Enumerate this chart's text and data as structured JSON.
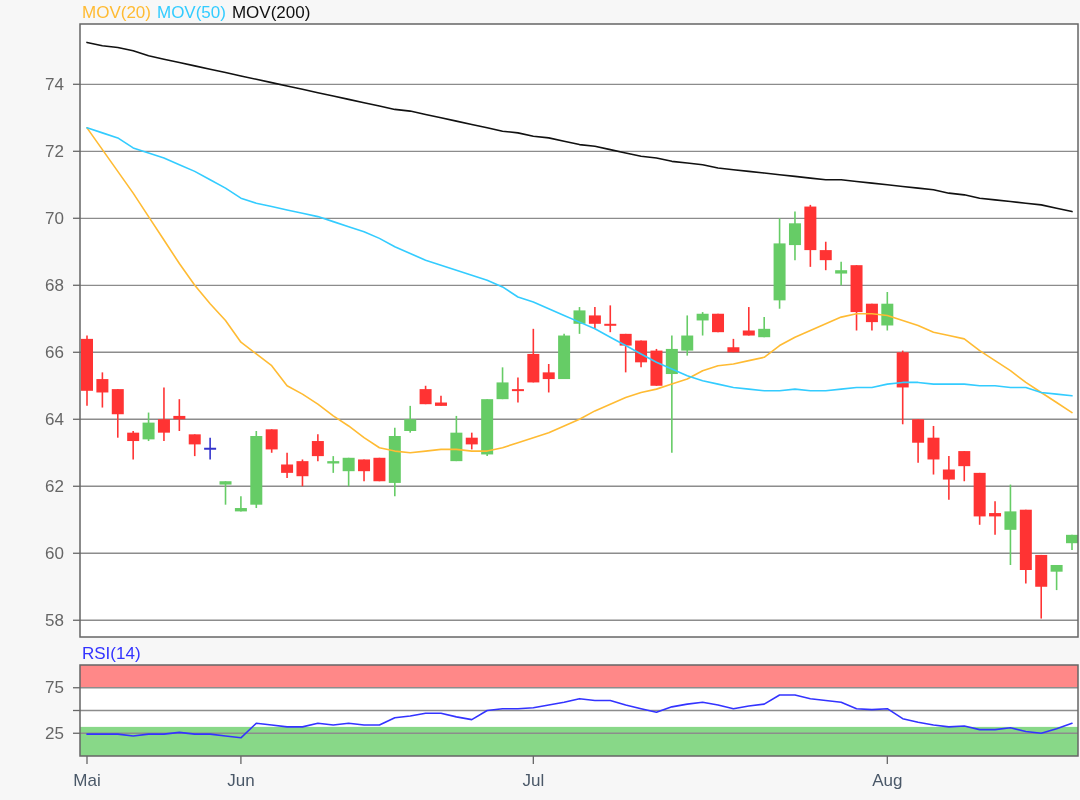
{
  "chart_data": [
    {
      "type": "candlestick",
      "categories": [
        null,
        null,
        null,
        null,
        null,
        null,
        null,
        null,
        null,
        null,
        null,
        null,
        null,
        null,
        null,
        null,
        null,
        null,
        null,
        null,
        null,
        null,
        null,
        null,
        null,
        null,
        null,
        null,
        null,
        null,
        null,
        null,
        null,
        null,
        null,
        null,
        null,
        null,
        null,
        null,
        null,
        null,
        null,
        null,
        null,
        null,
        null,
        null,
        null,
        null,
        null,
        null,
        null,
        null,
        null,
        null,
        null,
        null,
        null,
        null,
        null,
        null,
        null,
        null,
        null
      ],
      "ohlc": [
        [
          66.4,
          66.5,
          64.4,
          64.85
        ],
        [
          65.2,
          65.4,
          64.35,
          64.8
        ],
        [
          64.9,
          64.9,
          63.45,
          64.15
        ],
        [
          63.6,
          63.65,
          62.8,
          63.35
        ],
        [
          63.4,
          64.2,
          63.35,
          63.9
        ],
        [
          64.0,
          64.95,
          63.35,
          63.6
        ],
        [
          64.1,
          64.6,
          63.65,
          64.0
        ],
        [
          63.55,
          63.55,
          62.9,
          63.25
        ],
        [
          63.15,
          63.45,
          62.8,
          63.15
        ],
        [
          62.05,
          62.15,
          61.45,
          62.15
        ],
        [
          61.25,
          61.7,
          61.25,
          61.35
        ],
        [
          61.45,
          63.65,
          61.35,
          63.5
        ],
        [
          63.7,
          63.7,
          63.0,
          63.1
        ],
        [
          62.65,
          63.0,
          62.25,
          62.4
        ],
        [
          62.75,
          62.8,
          62.0,
          62.3
        ],
        [
          63.35,
          63.55,
          62.75,
          62.9
        ],
        [
          62.68,
          62.9,
          62.4,
          62.75
        ],
        [
          62.45,
          62.85,
          62.0,
          62.85
        ],
        [
          62.8,
          62.8,
          62.15,
          62.45
        ],
        [
          62.85,
          62.85,
          62.15,
          62.15
        ],
        [
          62.1,
          63.75,
          61.7,
          63.5
        ],
        [
          63.65,
          64.4,
          63.6,
          64.0
        ],
        [
          64.9,
          65.0,
          64.45,
          64.45
        ],
        [
          64.5,
          64.7,
          64.4,
          64.4
        ],
        [
          62.75,
          64.1,
          62.75,
          63.6
        ],
        [
          63.45,
          63.6,
          63.1,
          63.25
        ],
        [
          62.95,
          64.6,
          62.9,
          64.6
        ],
        [
          64.6,
          65.55,
          64.6,
          65.1
        ],
        [
          64.9,
          65.25,
          64.5,
          64.85
        ],
        [
          65.95,
          66.7,
          65.1,
          65.1
        ],
        [
          65.4,
          65.65,
          64.8,
          65.2
        ],
        [
          65.2,
          66.55,
          65.2,
          66.5
        ],
        [
          66.85,
          67.35,
          66.55,
          67.25
        ],
        [
          67.1,
          67.35,
          66.7,
          66.85
        ],
        [
          66.85,
          67.4,
          66.6,
          66.8
        ],
        [
          66.55,
          66.55,
          65.4,
          66.2
        ],
        [
          66.35,
          66.35,
          65.55,
          65.7
        ],
        [
          66.05,
          66.1,
          65.0,
          65.0
        ],
        [
          65.35,
          66.5,
          63.0,
          66.1
        ],
        [
          66.05,
          67.1,
          65.9,
          66.5
        ],
        [
          66.95,
          67.2,
          66.5,
          67.15
        ],
        [
          67.15,
          67.15,
          66.6,
          66.6
        ],
        [
          66.15,
          66.4,
          66.0,
          66.0
        ],
        [
          66.65,
          67.35,
          66.5,
          66.5
        ],
        [
          66.45,
          67.05,
          66.45,
          66.7
        ],
        [
          67.55,
          70.0,
          67.3,
          69.25
        ],
        [
          69.2,
          70.2,
          68.75,
          69.85
        ],
        [
          70.35,
          70.4,
          68.55,
          69.05
        ],
        [
          69.05,
          69.3,
          68.45,
          68.75
        ],
        [
          68.35,
          68.7,
          68.0,
          68.45
        ],
        [
          68.6,
          68.6,
          66.65,
          67.2
        ],
        [
          67.45,
          67.45,
          66.65,
          66.9
        ],
        [
          66.8,
          67.8,
          66.65,
          67.45
        ],
        [
          66.0,
          66.05,
          63.85,
          64.95
        ],
        [
          64.0,
          64.0,
          62.7,
          63.3
        ],
        [
          63.45,
          63.8,
          62.35,
          62.8
        ],
        [
          62.5,
          62.9,
          61.6,
          62.2
        ],
        [
          63.05,
          63.05,
          62.15,
          62.6
        ],
        [
          62.4,
          62.4,
          60.85,
          61.1
        ],
        [
          61.2,
          61.55,
          60.55,
          61.1
        ],
        [
          60.7,
          62.05,
          59.65,
          61.25
        ],
        [
          61.3,
          61.3,
          59.1,
          59.5
        ],
        [
          59.95,
          59.95,
          58.05,
          59.0
        ],
        [
          59.45,
          59.65,
          58.9,
          59.65
        ],
        [
          60.3,
          60.55,
          60.1,
          60.55
        ]
      ],
      "colors": [
        "#ff3333",
        "#ff3333",
        "#ff3333",
        "#ff3333",
        "#66cc66",
        "#ff3333",
        "#ff3333",
        "#ff3333",
        "#3333cc",
        "#66cc66",
        "#66cc66",
        "#66cc66",
        "#ff3333",
        "#ff3333",
        "#ff3333",
        "#ff3333",
        "#66cc66",
        "#66cc66",
        "#ff3333",
        "#ff3333",
        "#66cc66",
        "#66cc66",
        "#ff3333",
        "#ff3333",
        "#66cc66",
        "#ff3333",
        "#66cc66",
        "#66cc66",
        "#ff3333",
        "#ff3333",
        "#ff3333",
        "#66cc66",
        "#66cc66",
        "#ff3333",
        "#ff3333",
        "#ff3333",
        "#ff3333",
        "#ff3333",
        "#66cc66",
        "#66cc66",
        "#66cc66",
        "#ff3333",
        "#ff3333",
        "#ff3333",
        "#66cc66",
        "#66cc66",
        "#66cc66",
        "#ff3333",
        "#ff3333",
        "#66cc66",
        "#ff3333",
        "#ff3333",
        "#66cc66",
        "#ff3333",
        "#ff3333",
        "#ff3333",
        "#ff3333",
        "#ff3333",
        "#ff3333",
        "#ff3333",
        "#66cc66",
        "#ff3333",
        "#ff3333",
        "#66cc66",
        "#66cc66"
      ],
      "series": [
        {
          "type": "line",
          "name": "MOV(20)",
          "color": "#ffbb33",
          "values": [
            72.7,
            72.05,
            71.4,
            70.75,
            70.05,
            69.35,
            68.65,
            68.0,
            67.45,
            66.95,
            66.3,
            65.95,
            65.6,
            65.0,
            64.75,
            64.45,
            64.1,
            63.8,
            63.45,
            63.15,
            63.05,
            63.0,
            63.05,
            63.1,
            63.1,
            63.05,
            63.05,
            63.15,
            63.3,
            63.45,
            63.6,
            63.8,
            64.0,
            64.25,
            64.45,
            64.65,
            64.8,
            64.9,
            65.05,
            65.2,
            65.45,
            65.6,
            65.65,
            65.75,
            65.85,
            66.2,
            66.45,
            66.65,
            66.85,
            67.05,
            67.15,
            67.15,
            67.1,
            66.95,
            66.8,
            66.6,
            66.5,
            66.4,
            66.05,
            65.75,
            65.45,
            65.1,
            64.8,
            64.5,
            64.2
          ]
        },
        {
          "type": "line",
          "name": "MOV(50)",
          "color": "#33ccff",
          "values": [
            72.7,
            72.55,
            72.4,
            72.1,
            71.95,
            71.8,
            71.6,
            71.4,
            71.15,
            70.9,
            70.6,
            70.45,
            70.35,
            70.25,
            70.15,
            70.05,
            69.9,
            69.75,
            69.6,
            69.4,
            69.15,
            68.95,
            68.75,
            68.6,
            68.45,
            68.3,
            68.15,
            67.95,
            67.65,
            67.5,
            67.3,
            67.1,
            66.9,
            66.7,
            66.45,
            66.2,
            65.95,
            65.7,
            65.5,
            65.3,
            65.15,
            65.05,
            64.95,
            64.9,
            64.85,
            64.85,
            64.9,
            64.85,
            64.85,
            64.9,
            64.95,
            64.95,
            65.05,
            65.1,
            65.1,
            65.05,
            65.05,
            65.05,
            65.0,
            65.0,
            64.95,
            64.95,
            64.8,
            64.75,
            64.7
          ]
        },
        {
          "type": "line",
          "name": "MOV(200)",
          "color": "#111111",
          "values": [
            75.25,
            75.15,
            75.1,
            75.0,
            74.85,
            74.75,
            74.65,
            74.55,
            74.45,
            74.35,
            74.25,
            74.15,
            74.05,
            73.95,
            73.85,
            73.75,
            73.65,
            73.55,
            73.45,
            73.35,
            73.25,
            73.2,
            73.1,
            73.0,
            72.9,
            72.8,
            72.7,
            72.6,
            72.55,
            72.45,
            72.4,
            72.3,
            72.2,
            72.15,
            72.05,
            71.95,
            71.85,
            71.8,
            71.7,
            71.65,
            71.6,
            71.5,
            71.45,
            71.4,
            71.35,
            71.3,
            71.25,
            71.2,
            71.15,
            71.15,
            71.1,
            71.05,
            71.0,
            70.95,
            70.9,
            70.85,
            70.75,
            70.7,
            70.6,
            70.55,
            70.5,
            70.45,
            70.4,
            70.3,
            70.2
          ]
        }
      ],
      "ylim": [
        57.5,
        75.8
      ],
      "yticks": [
        58,
        60,
        62,
        64,
        66,
        68,
        70,
        72,
        74
      ],
      "grid": "y",
      "legend": "top left"
    },
    {
      "type": "line",
      "categories": [
        "Mai",
        null,
        null,
        null,
        null,
        null,
        null,
        null,
        null,
        null,
        "Jun",
        null,
        null,
        null,
        null,
        null,
        null,
        null,
        null,
        null,
        null,
        null,
        null,
        null,
        null,
        null,
        null,
        null,
        null,
        "Jul",
        null,
        null,
        null,
        null,
        null,
        null,
        null,
        null,
        null,
        null,
        null,
        null,
        null,
        null,
        null,
        null,
        null,
        null,
        null,
        null,
        null,
        null,
        "Aug",
        null,
        null,
        null,
        null,
        null,
        null,
        null,
        null,
        null,
        null,
        null,
        null
      ],
      "series": [
        {
          "name": "RSI(14)",
          "color": "#3333ff",
          "values": [
            24,
            24,
            24,
            22,
            24,
            24,
            26,
            24,
            24,
            22,
            20,
            36,
            34,
            32,
            32,
            36,
            34,
            36,
            34,
            34,
            42,
            44,
            47,
            47,
            43,
            40,
            50,
            52,
            52,
            53,
            56,
            59,
            63,
            61,
            61,
            56,
            52,
            48,
            54,
            57,
            59,
            56,
            52,
            55,
            57,
            67,
            67,
            63,
            61,
            59,
            52,
            51,
            52,
            41,
            37,
            34,
            32,
            33,
            29,
            29,
            31,
            27,
            25,
            30,
            36
          ]
        }
      ],
      "ylim": [
        0,
        100
      ],
      "yticks": [
        25,
        {
          "value": 50,
          "label": null
        },
        75
      ],
      "bands": [
        {
          "axis": "y",
          "from": 75,
          "to": 100,
          "color": "#ff8888"
        },
        {
          "axis": "y",
          "from": 0,
          "to": 32,
          "color": "#88d888"
        }
      ],
      "grid": "y",
      "legend": "top left"
    }
  ]
}
